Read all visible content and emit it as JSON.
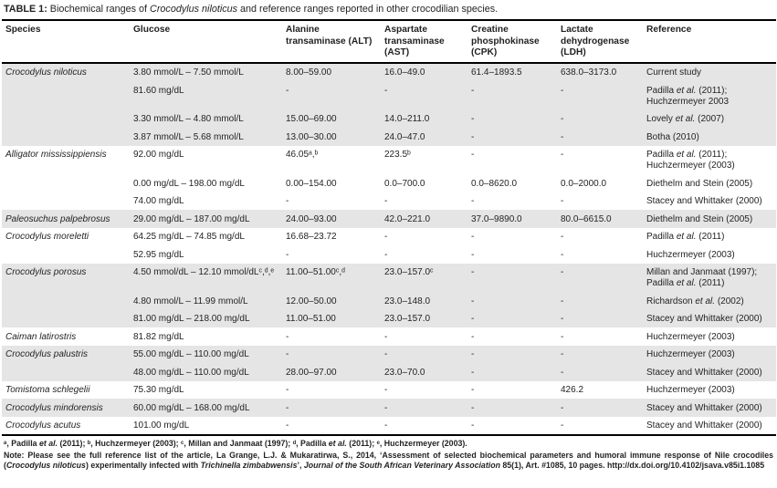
{
  "colors": {
    "row_shade": "#e5e5e5",
    "rule": "#000000",
    "text": "#231f20"
  },
  "title": {
    "segments": [
      {
        "text": "TABLE 1:",
        "bold": true
      },
      {
        "text": " Biochemical ranges of "
      },
      {
        "text": "Crocodylus niloticus",
        "italic": true
      },
      {
        "text": " and reference ranges reported in other crocodilian species."
      }
    ]
  },
  "table": {
    "columns": [
      {
        "key": "species",
        "label": "Species"
      },
      {
        "key": "glucose",
        "label": "Glucose"
      },
      {
        "key": "alt",
        "label": "Alanine transaminase (ALT)"
      },
      {
        "key": "ast",
        "label": "Aspartate transaminase (AST)"
      },
      {
        "key": "cpk",
        "label": "Creatine phosphokinase (CPK)"
      },
      {
        "key": "ldh",
        "label": "Lactate dehydrogenase (LDH)"
      },
      {
        "key": "reference",
        "label": "Reference"
      }
    ],
    "rows": [
      {
        "species": "Crocodylus niloticus",
        "glucose": "3.80 mmol/L – 7.50 mmol/L",
        "alt": "8.00–59.00",
        "ast": "16.0–49.0",
        "cpk": "61.4–1893.5",
        "ldh": "638.0–3173.0",
        "reference": "Current study",
        "shaded": true
      },
      {
        "species": "",
        "glucose": "81.60 mg/dL",
        "alt": "-",
        "ast": "-",
        "cpk": "-",
        "ldh": "-",
        "reference": "Padilla et al. (2011); Huchzermeyer 2003",
        "shaded": true
      },
      {
        "species": "",
        "glucose": "3.30 mmol/L – 4.80 mmol/L",
        "alt": "15.00–69.00",
        "ast": "14.0–211.0",
        "cpk": "-",
        "ldh": "-",
        "reference": "Lovely et al. (2007)",
        "shaded": true
      },
      {
        "species": "",
        "glucose": "3.87 mmol/L – 5.68 mmol/L",
        "alt": "13.00–30.00",
        "ast": "24.0–47.0",
        "cpk": "-",
        "ldh": "-",
        "reference": "Botha (2010)",
        "shaded": true
      },
      {
        "species": "Alligator mississippiensis",
        "glucose": "92.00 mg/dL",
        "alt": "46.05ᵃ,ᵇ",
        "ast": "223.5ᵇ",
        "cpk": "-",
        "ldh": "-",
        "reference": "Padilla et al. (2011); Huchzermeyer (2003)",
        "shaded": false
      },
      {
        "species": "",
        "glucose": "0.00 mg/dL – 198.00 mg/dL",
        "alt": "0.00–154.00",
        "ast": "0.0–700.0",
        "cpk": "0.0–8620.0",
        "ldh": "0.0–2000.0",
        "reference": "Diethelm and Stein (2005)",
        "shaded": false
      },
      {
        "species": "",
        "glucose": "74.00 mg/dL",
        "alt": "-",
        "ast": "-",
        "cpk": "-",
        "ldh": "-",
        "reference": "Stacey and Whittaker (2000)",
        "shaded": false
      },
      {
        "species": "Paleosuchus palpebrosus",
        "glucose": "29.00 mg/dL – 187.00 mg/dL",
        "alt": "24.00–93.00",
        "ast": "42.0–221.0",
        "cpk": "37.0–9890.0",
        "ldh": "80.0–6615.0",
        "reference": "Diethelm and Stein (2005)",
        "shaded": true
      },
      {
        "species": "Crocodylus moreletti",
        "glucose": "64.25 mg/dL – 74.85 mg/dL",
        "alt": "16.68–23.72",
        "ast": "-",
        "cpk": "-",
        "ldh": "-",
        "reference": "Padilla et al. (2011)",
        "shaded": false
      },
      {
        "species": "",
        "glucose": "52.95 mg/dL",
        "alt": "-",
        "ast": "-",
        "cpk": "-",
        "ldh": "-",
        "reference": "Huchzermeyer (2003)",
        "shaded": false
      },
      {
        "species": "Crocodylus porosus",
        "glucose": "4.50 mmol/dL – 12.10 mmol/dLᶜ,ᵈ,ᵉ",
        "alt": "11.00–51.00ᶜ,ᵈ",
        "ast": "23.0–157.0ᶜ",
        "cpk": "-",
        "ldh": "-",
        "reference": "Millan and Janmaat (1997); Padilla et al. (2011)",
        "shaded": true
      },
      {
        "species": "",
        "glucose": "4.80 mmol/L – 11.99 mmol/L",
        "alt": "12.00–50.00",
        "ast": "23.0–148.0",
        "cpk": "-",
        "ldh": "-",
        "reference": "Richardson et al. (2002)",
        "shaded": true
      },
      {
        "species": "",
        "glucose": "81.00 mg/dL – 218.00 mg/dL",
        "alt": "11.00–51.00",
        "ast": "23.0–157.0",
        "cpk": "-",
        "ldh": "-",
        "reference": "Stacey and Whittaker (2000)",
        "shaded": true
      },
      {
        "species": "Caiman latirostris",
        "glucose": "81.82 mg/dL",
        "alt": "-",
        "ast": "-",
        "cpk": "-",
        "ldh": "-",
        "reference": "Huchzermeyer (2003)",
        "shaded": false
      },
      {
        "species": "Crocodylus palustris",
        "glucose": "55.00 mg/dL – 110.00 mg/dL",
        "alt": "-",
        "ast": "-",
        "cpk": "-",
        "ldh": "-",
        "reference": "Huchzermeyer (2003)",
        "shaded": true
      },
      {
        "species": "",
        "glucose": "48.00 mg/dL – 110.00 mg/dL",
        "alt": "28.00–97.00",
        "ast": "23.0–70.0",
        "cpk": "-",
        "ldh": "-",
        "reference": "Stacey and Whittaker (2000)",
        "shaded": true
      },
      {
        "species": "Tomistoma schlegelii",
        "glucose": "75.30 mg/dL",
        "alt": "-",
        "ast": "-",
        "cpk": "-",
        "ldh": "426.2",
        "reference": "Huchzermeyer (2003)",
        "shaded": false
      },
      {
        "species": "Crocodylus mindorensis",
        "glucose": "60.00 mg/dL – 168.00 mg/dL",
        "alt": "-",
        "ast": "-",
        "cpk": "-",
        "ldh": "-",
        "reference": "Stacey and Whittaker (2000)",
        "shaded": true
      },
      {
        "species": "Crocodylus acutus",
        "glucose": "101.00 mg/dL",
        "alt": "-",
        "ast": "-",
        "cpk": "-",
        "ldh": "-",
        "reference": "Stacey and Whittaker (2000)",
        "shaded": false
      }
    ]
  },
  "footnote": {
    "segments": [
      {
        "text": "ᵃ, Padilla "
      },
      {
        "text": "et al.",
        "italic": true
      },
      {
        "text": " (2011); ᵇ, Huchzermeyer (2003); ᶜ, Millan and Janmaat (1997); ᵈ, Padilla "
      },
      {
        "text": "et al.",
        "italic": true
      },
      {
        "text": " (2011); ᵉ, Huchzermeyer (2003)."
      }
    ]
  },
  "note": {
    "segments": [
      {
        "text": "Note: Please see the full reference list of the article, La Grange, L.J. & Mukaratirwa, S., 2014, ‘Assessment of selected biochemical parameters and humoral immune response of Nile crocodiles ("
      },
      {
        "text": "Crocodylus niloticus",
        "italic": true
      },
      {
        "text": ") experimentally infected with "
      },
      {
        "text": "Trichinella zimbabwensis",
        "italic": true
      },
      {
        "text": "’, "
      },
      {
        "text": "Journal of the South African Veterinary Association",
        "italic": true
      },
      {
        "text": " 85(1), Art. #1085, 10 pages. http://dx.doi.org/10.4102/jsava.v85i1.1085"
      }
    ]
  }
}
